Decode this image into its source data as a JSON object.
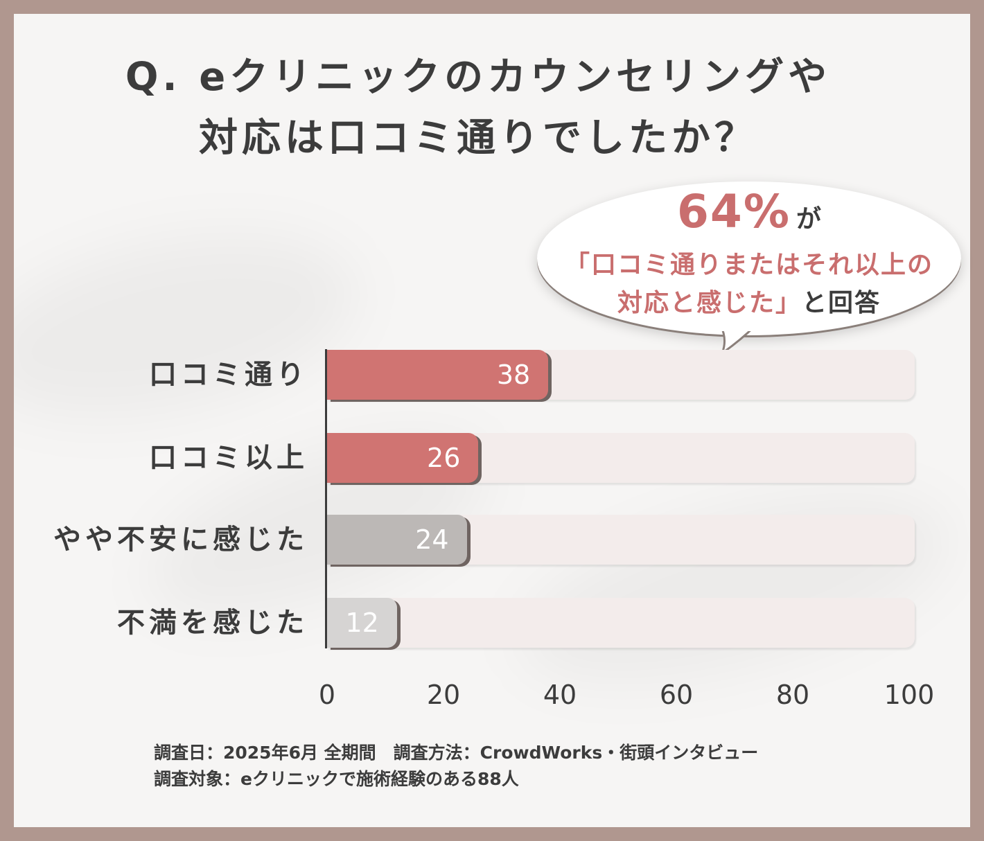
{
  "title": {
    "line1": "Q. eクリニックのカウンセリングや",
    "line2": "対応は口コミ通りでしたか？"
  },
  "callout": {
    "percent": "64%",
    "suffix": "が",
    "line2": "「口コミ通りまたはそれ以上の",
    "line3_pink": "対応と感じた」",
    "line3_rest": "と回答"
  },
  "chart_data": {
    "type": "bar",
    "orientation": "horizontal",
    "categories": [
      "口コミ通り",
      "口コミ以上",
      "やや不安に感じた",
      "不満を感じた"
    ],
    "values": [
      38,
      26,
      24,
      12
    ],
    "value_labels": [
      "38",
      "26",
      "24",
      "12"
    ],
    "xlim": [
      0,
      100
    ],
    "ticks": [
      "0",
      "20",
      "40",
      "60",
      "80",
      "100"
    ],
    "colors": [
      "#d07472",
      "#d07472",
      "#bcb8b6",
      "#d6d4d3"
    ],
    "title": "Q. eクリニックのカウンセリングや対応は口コミ通りでしたか？"
  },
  "notes": {
    "line1": "調査日：2025年6月 全期間　調査方法：CrowdWorks・街頭インタビュー",
    "line2": "調査対象：eクリニックで施術経験のある88人"
  }
}
